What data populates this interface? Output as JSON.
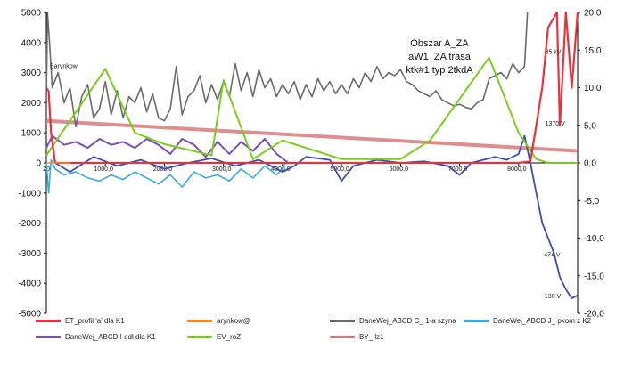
{
  "chart_data": {
    "type": "line",
    "title": "",
    "xlabel": "",
    "ylabel": "",
    "xlim": [
      0,
      9000
    ],
    "ylim": [
      -5000,
      5000
    ],
    "y2lim": [
      -20,
      20
    ],
    "grid": false,
    "legend_position": "bottom",
    "left_ticks": [
      "5000",
      "4000",
      "3000",
      "2000",
      "1000",
      "0",
      "-1000",
      "-2000",
      "-3000",
      "-4000",
      "-5000"
    ],
    "right_ticks": [
      "20,0",
      "15,0",
      "10,0",
      "5,0",
      "0,0",
      "-5,0",
      "-10,0",
      "-15,0",
      "-20,0"
    ],
    "x_ticks": [
      "1000,0",
      "2000,0",
      "3000,0",
      "4000,0",
      "5000,0",
      "6000,0",
      "7000,0",
      "8000,0"
    ],
    "x_start_label": "20",
    "annotation_lines": [
      "Obszar A_ZA",
      "aW1_ZA trasa",
      "ktk#1 typ 2tkdA"
    ],
    "point_labels": [
      {
        "text": "Barynkow",
        "x": 60,
        "y": 3150,
        "axis": "left",
        "series": "DaneWej_ABCD C_ 1-a szyna"
      },
      {
        "text": "35 kV",
        "x": 8450,
        "y": 14.5,
        "axis": "right",
        "series": "ET_profil 'a' dla K1"
      },
      {
        "text": "1370 V",
        "x": 8450,
        "y": 5.0,
        "axis": "right",
        "series": "ET_profil 'a' dla K1"
      },
      {
        "text": "474 V",
        "x": 8430,
        "y": -12.5,
        "axis": "right",
        "series": "DaneWej_ABCD I odl dla K1"
      },
      {
        "text": "130 V",
        "x": 8440,
        "y": -18.0,
        "axis": "right",
        "series": "DaneWej_ABCD I odl dla K1"
      }
    ],
    "series": [
      {
        "name": "ET_profil 'a' dla K1",
        "color": "#e8323c",
        "axis": "right",
        "x": [
          0,
          40,
          80,
          150,
          8000,
          8200,
          8300,
          8400,
          8500,
          8650,
          8700,
          8800,
          8900,
          9000
        ],
        "y": [
          10.0,
          9.5,
          4.0,
          0.0,
          0.0,
          0.2,
          5.0,
          10.0,
          18.0,
          20.0,
          5.0,
          20.0,
          10.0,
          20.0
        ]
      },
      {
        "name": "arynkow@",
        "color": "#f08a24",
        "axis": "left",
        "x": [
          0,
          100,
          200,
          300,
          400
        ],
        "y": [
          0,
          0,
          0,
          0,
          0
        ]
      },
      {
        "name": "DaneWej_ABCD C_ 1-a szyna",
        "color": "#6a6a6a",
        "axis": "left",
        "x": [
          0,
          20,
          60,
          100,
          200,
          300,
          400,
          500,
          600,
          700,
          800,
          900,
          1000,
          1100,
          1200,
          1300,
          1400,
          1500,
          1600,
          1700,
          1800,
          1900,
          2000,
          2100,
          2200,
          2300,
          2400,
          2500,
          2600,
          2700,
          2800,
          2900,
          3000,
          3100,
          3200,
          3300,
          3400,
          3500,
          3600,
          3700,
          3800,
          3900,
          4000,
          4100,
          4200,
          4300,
          4400,
          4500,
          4600,
          4700,
          4800,
          4900,
          5000,
          5100,
          5200,
          5300,
          5400,
          5500,
          5600,
          5700,
          5800,
          5900,
          6000,
          6100,
          6200,
          6300,
          6400,
          6500,
          6600,
          6700,
          6800,
          6900,
          7000,
          7100,
          7200,
          7300,
          7400,
          7500,
          7600,
          7700,
          7800,
          7900,
          8000,
          8100,
          8150
        ],
        "y": [
          2000,
          5000,
          3800,
          2500,
          3000,
          2000,
          2500,
          1200,
          2200,
          2600,
          1500,
          1800,
          2700,
          1600,
          2400,
          1500,
          2200,
          2000,
          2500,
          1700,
          2300,
          1500,
          1400,
          1800,
          3200,
          1600,
          2200,
          2400,
          2900,
          2000,
          2600,
          2100,
          2700,
          2200,
          3300,
          2400,
          3000,
          2200,
          3100,
          2500,
          2800,
          2200,
          2600,
          2300,
          2700,
          2100,
          2600,
          2200,
          2800,
          2400,
          2700,
          2300,
          2600,
          2300,
          2800,
          2500,
          3000,
          2700,
          3200,
          2800,
          3000,
          2900,
          3100,
          2700,
          2600,
          2400,
          2300,
          2200,
          2400,
          2100,
          2000,
          1900,
          1950,
          1850,
          1800,
          2000,
          2100,
          2800,
          2900,
          3000,
          2800,
          3300,
          3000,
          3200,
          5000
        ]
      },
      {
        "name": "DaneWej_ABCD J_ pkom z K2",
        "color": "#3aa9e0",
        "axis": "left",
        "x": [
          0,
          40,
          80,
          150,
          300,
          500,
          700,
          900,
          1100,
          1300,
          1500,
          1700,
          1900,
          2100,
          2300,
          2500,
          2700,
          2900,
          3100,
          3300,
          3500,
          3700,
          3900,
          4000,
          4050
        ],
        "y": [
          0,
          -1000,
          100,
          -200,
          -400,
          -300,
          -500,
          -600,
          -400,
          -550,
          -300,
          -500,
          -700,
          -400,
          -800,
          -300,
          -500,
          -400,
          -600,
          -200,
          -500,
          -100,
          -400,
          -200,
          0
        ]
      },
      {
        "name": "DaneWej_ABCD I odl dla K1",
        "color": "#3b4eb0",
        "axis": "left",
        "x": [
          150,
          400,
          800,
          1200,
          1600,
          2000,
          2400,
          2800,
          3200,
          3600,
          4000,
          4200,
          4400,
          4800,
          5000,
          5200,
          5400,
          5600,
          6000,
          6400,
          6800,
          7000,
          7200,
          7600,
          7800,
          8000,
          8100,
          8200,
          8300,
          8400,
          8500,
          8600,
          8700,
          8800,
          8900,
          9000
        ],
        "y": [
          0,
          -300,
          200,
          -100,
          100,
          -200,
          0,
          150,
          -100,
          100,
          -300,
          -100,
          200,
          100,
          -600,
          -100,
          0,
          100,
          0,
          50,
          -100,
          -400,
          0,
          200,
          100,
          300,
          900,
          0,
          -1000,
          -2000,
          -2500,
          -3000,
          -3800,
          -4200,
          -4500,
          -4400
        ]
      },
      {
        "name": "DaneWej_ABCD I odl dla K1",
        "color": "#7b4fb8",
        "axis": "left",
        "x": [
          0,
          100,
          300,
          500,
          700,
          900,
          1100,
          1300,
          1500,
          1700,
          1900,
          2100,
          2300,
          2500,
          2700,
          2900,
          3100,
          3300,
          3500,
          3700,
          3900,
          4100
        ],
        "y": [
          500,
          900,
          600,
          700,
          500,
          800,
          600,
          700,
          500,
          800,
          600,
          300,
          800,
          600,
          200,
          700,
          300,
          700,
          400,
          800,
          300,
          0
        ]
      },
      {
        "name": "EV_roZ",
        "color": "#7ccc1e",
        "axis": "right",
        "x": [
          0,
          1000,
          1500,
          2000,
          2800,
          3000,
          3500,
          4000,
          5000,
          6000,
          6500,
          7500,
          8000,
          8300,
          8500,
          9000
        ],
        "y": [
          1.0,
          12.5,
          4.0,
          2.5,
          1.0,
          11.0,
          0.5,
          3.0,
          0.5,
          0.5,
          3.0,
          14.0,
          4.0,
          0.5,
          0.0,
          0.0
        ]
      },
      {
        "name": "BY_ lz1",
        "color": "#d77a7a",
        "axis": "left",
        "x": [
          0,
          9000
        ],
        "y": [
          1400,
          400
        ]
      }
    ]
  }
}
